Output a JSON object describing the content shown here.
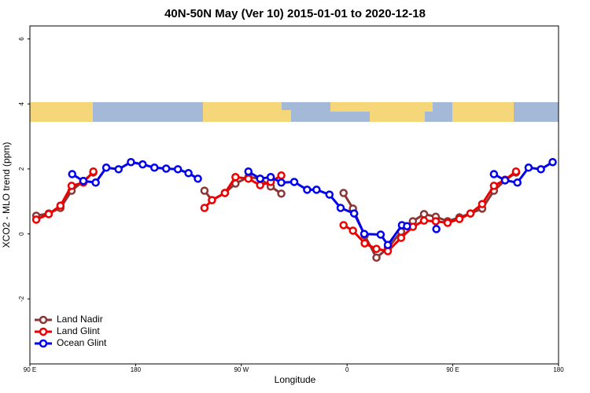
{
  "chart_data": {
    "type": "line",
    "title": "40N-50N May (Ver 10)   2015-01-01 to 2020-12-18",
    "x_label": "Longitude",
    "y_label": "XCO2 - MLO trend (ppm)",
    "xlim": [
      90,
      540
    ],
    "ylim": [
      -4,
      6.4
    ],
    "xticks": [
      {
        "value": 90,
        "label": "90 E"
      },
      180,
      {
        "value": 270,
        "label": "90 W"
      },
      {
        "value": 360,
        "label": "0"
      },
      {
        "value": 450,
        "label": "90 E"
      },
      {
        "value": 540,
        "label": "180"
      }
    ],
    "yticks": [
      -2,
      0,
      2,
      4,
      6
    ],
    "legend": "bottom-left",
    "series": [
      {
        "name": "Land Nadir",
        "color": "#8b3535",
        "x": [
          95.4,
          106,
          116,
          125.5,
          135.5,
          144,
          null,
          238.6,
          245,
          256,
          265,
          276,
          286,
          295,
          304,
          null,
          357,
          365,
          375,
          385,
          394.7,
          406,
          416,
          425.5,
          435.5,
          445.6,
          455.6,
          465,
          475,
          485,
          494.5,
          503.8
        ],
        "values": [
          0.56,
          0.63,
          0.8,
          1.33,
          1.63,
          1.89,
          null,
          1.33,
          1.04,
          1.26,
          1.55,
          1.75,
          1.7,
          1.46,
          1.24,
          null,
          1.26,
          0.78,
          -0.05,
          -0.73,
          -0.44,
          0.07,
          0.39,
          0.61,
          0.53,
          0.39,
          0.51,
          0.63,
          0.78,
          1.33,
          1.65,
          1.89
        ]
      },
      {
        "name": "Land Glint",
        "color": "#ee0000",
        "x": [
          95.4,
          106,
          116,
          125.5,
          135.5,
          144,
          null,
          238.6,
          245,
          256,
          265,
          276,
          286,
          295,
          304,
          null,
          357,
          365,
          375,
          385,
          394.7,
          406,
          416,
          425.5,
          435.5,
          445.6,
          455.6,
          465,
          475,
          485,
          494.5,
          503.8
        ],
        "values": [
          0.44,
          0.61,
          0.87,
          1.48,
          1.58,
          1.92,
          null,
          0.8,
          1.04,
          1.26,
          1.75,
          1.7,
          1.5,
          1.6,
          1.8,
          null,
          0.27,
          0.1,
          -0.29,
          -0.46,
          -0.53,
          -0.12,
          0.22,
          0.41,
          0.39,
          0.34,
          0.46,
          0.63,
          0.92,
          1.48,
          1.67,
          1.92
        ]
      },
      {
        "name": "Ocean Glint",
        "color": "#0000ee",
        "x": [
          126,
          135.5,
          146,
          155,
          165.5,
          176,
          186,
          196,
          206,
          216,
          225,
          233,
          null,
          276,
          286,
          295,
          304,
          315,
          326,
          334,
          345,
          354.5,
          366,
          374.6,
          388.6,
          394.7,
          406.7,
          411,
          null,
          436,
          null,
          485,
          494.5,
          505,
          514.5,
          525,
          535
        ],
        "values": [
          1.84,
          1.63,
          1.58,
          2.04,
          1.99,
          2.21,
          2.14,
          2.04,
          2.01,
          1.99,
          1.87,
          1.7,
          null,
          1.92,
          1.7,
          1.75,
          1.58,
          1.6,
          1.36,
          1.36,
          1.21,
          0.8,
          0.63,
          0,
          -0.02,
          -0.34,
          0.27,
          0.24,
          null,
          0.15,
          null,
          1.84,
          1.65,
          1.58,
          2.04,
          1.99,
          2.21
        ]
      }
    ]
  }
}
